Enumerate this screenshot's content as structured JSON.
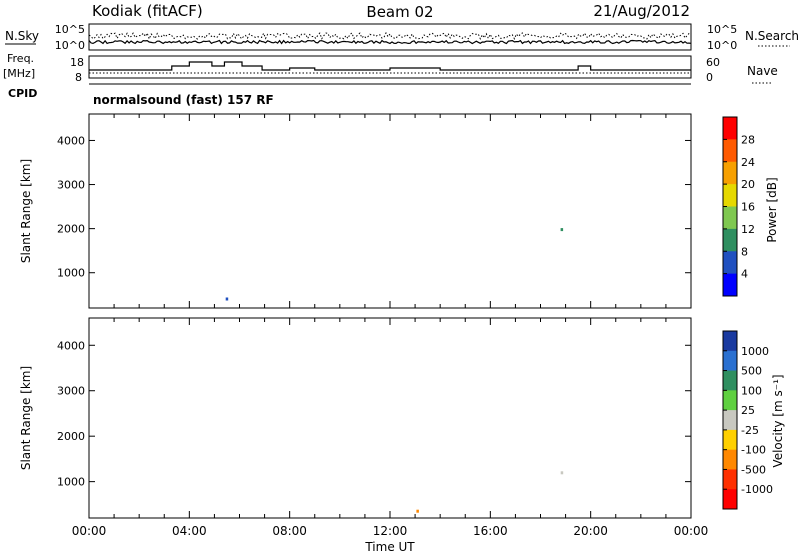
{
  "header": {
    "station": "Kodiak (fitACF)",
    "beam": "Beam 02",
    "date": "21/Aug/2012"
  },
  "status": {
    "nsky_label": "N.Sky",
    "nsky_ticks": [
      "10^5",
      "10^0"
    ],
    "nsearch_label": "N.Search",
    "nsearch_ticks": [
      "10^5",
      "10^0"
    ],
    "freq_label": "Freq.",
    "freq_unit": "[MHz]",
    "freq_ticks": [
      "18",
      "8"
    ],
    "nave_label": "Nave",
    "nave_ticks": [
      "60",
      "0"
    ],
    "cpid_label": "CPID",
    "cpid_text": "normalsound (fast) 157 RF"
  },
  "chart_data": [
    {
      "type": "heatmap",
      "name": "power",
      "ylabel": "Slant Range [km]",
      "xlabel": "Time UT",
      "x_ticks": [
        "00:00",
        "04:00",
        "08:00",
        "12:00",
        "16:00",
        "20:00",
        "00:00"
      ],
      "y_ticks": [
        1000,
        2000,
        3000,
        4000
      ],
      "ylim": [
        200,
        4600
      ],
      "colorbar": {
        "label": "Power [dB]",
        "ticks": [
          "28",
          "24",
          "20",
          "16",
          "12",
          "8",
          "4"
        ],
        "colors": [
          "#ff0000",
          "#ff5a00",
          "#f7a000",
          "#e6d800",
          "#7fc850",
          "#2f8f60",
          "#2050c0",
          "#0000ff"
        ]
      }
    },
    {
      "type": "heatmap",
      "name": "velocity",
      "ylabel": "Slant Range [km]",
      "xlabel": "Time UT",
      "x_ticks": [
        "00:00",
        "04:00",
        "08:00",
        "12:00",
        "16:00",
        "20:00",
        "00:00"
      ],
      "y_ticks": [
        1000,
        2000,
        3000,
        4000
      ],
      "ylim": [
        200,
        4600
      ],
      "colorbar": {
        "label": "Velocity [m s⁻¹]",
        "ticks": [
          "1000",
          "500",
          "100",
          "25",
          "-25",
          "-100",
          "-500",
          "-1000"
        ],
        "colors": [
          "#1a3aa0",
          "#2a70d0",
          "#2f8f60",
          "#5fd040",
          "#c8c8c0",
          "#ffd000",
          "#ff8800",
          "#ff3000",
          "#ff0000"
        ]
      }
    }
  ]
}
